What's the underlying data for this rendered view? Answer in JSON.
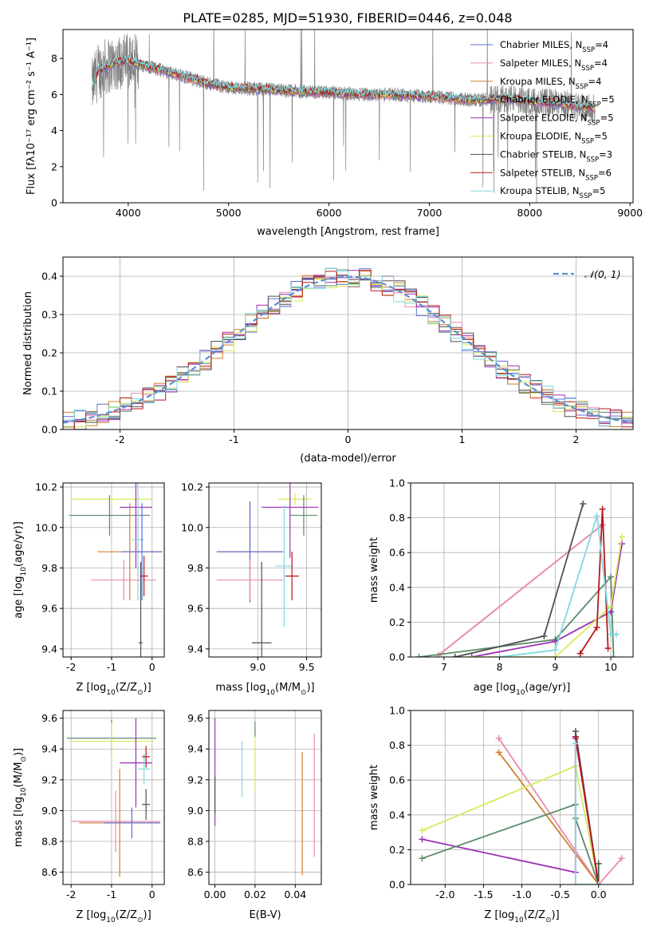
{
  "figure_title": "PLATE=0285, MJD=51930, FIBERID=0446, z=0.048",
  "colors": {
    "chabrier_miles": "#5b6fd6",
    "salpeter_miles": "#e98bb0",
    "kroupa_miles": "#d08131",
    "chabrier_elodie": "#5b8a68",
    "salpeter_elodie": "#9c2fb4",
    "kroupa_elodie": "#d6ea5a",
    "chabrier_stelib": "#505050",
    "salpeter_stelib": "#b81818",
    "kroupa_stelib": "#80d8df",
    "observed_spectrum": "#808080",
    "normal_curve": "#5b8fd6",
    "grid": "#b0b0b0"
  },
  "chart_data": [
    {
      "id": "spectrum",
      "type": "line",
      "xlabel": "wavelength [Angstrom, rest frame]",
      "ylabel": "Flux [fλ10⁻¹⁷ erg cm⁻² s⁻¹ A⁻¹]",
      "xlim": [
        3350,
        9030
      ],
      "ylim": [
        0,
        9.6
      ],
      "xticks": [
        4000,
        5000,
        6000,
        7000,
        8000,
        9000
      ],
      "yticks": [
        0,
        2,
        4,
        6,
        8
      ],
      "grid": false,
      "legend_position": "upper right",
      "data_range": [
        3640,
        8650
      ],
      "approx_continuum": {
        "x": [
          3640,
          3700,
          3800,
          3900,
          4000,
          4100,
          4300,
          4500,
          4800,
          5000,
          5300,
          5600,
          6000,
          6300,
          6600,
          7000,
          7400,
          7600,
          7800,
          8000,
          8300,
          8650
        ],
        "y": [
          6.4,
          7.3,
          7.6,
          7.8,
          7.9,
          7.7,
          7.4,
          7.1,
          6.6,
          6.4,
          6.3,
          6.2,
          6.1,
          6.0,
          6.0,
          5.9,
          5.7,
          5.7,
          5.8,
          5.6,
          5.5,
          5.2
        ]
      },
      "series": [
        {
          "name": "Chabrier MILES, N_SSP=4",
          "color_key": "chabrier_miles"
        },
        {
          "name": "Salpeter MILES, N_SSP=4",
          "color_key": "salpeter_miles"
        },
        {
          "name": "Kroupa MILES, N_SSP=4",
          "color_key": "kroupa_miles"
        },
        {
          "name": "Chabrier ELODIE, N_SSP=5",
          "color_key": "chabrier_elodie"
        },
        {
          "name": "Salpeter ELODIE, N_SSP=5",
          "color_key": "salpeter_elodie"
        },
        {
          "name": "Kroupa ELODIE, N_SSP=5",
          "color_key": "kroupa_elodie"
        },
        {
          "name": "Chabrier STELIB, N_SSP=3",
          "color_key": "chabrier_stelib"
        },
        {
          "name": "Salpeter STELIB, N_SSP=6",
          "color_key": "salpeter_stelib"
        },
        {
          "name": "Kroupa STELIB, N_SSP=5",
          "color_key": "kroupa_stelib"
        }
      ]
    },
    {
      "id": "residuals",
      "type": "step",
      "xlabel": "(data-model)/error",
      "ylabel": "Normed distribution",
      "xlim": [
        -2.5,
        2.5
      ],
      "ylim": [
        0,
        0.45
      ],
      "xticks": [
        -2,
        -1,
        0,
        1,
        2
      ],
      "yticks": [
        0.0,
        0.1,
        0.2,
        0.3,
        0.4
      ],
      "grid": true,
      "legend_position": "upper right",
      "legend_label": "𝒩(0, 1)",
      "bin_edges": {
        "start": -2.5,
        "width": 0.1,
        "count": 50
      }
    },
    {
      "id": "age_vs_Z",
      "type": "errorbar",
      "xlabel": "Z [log10(Z/Z⊙)]",
      "ylabel": "age  [log10(age/yr)]",
      "xlim": [
        -2.2,
        0.3
      ],
      "ylim": [
        9.36,
        10.22
      ],
      "xticks": [
        -2,
        -1,
        0
      ],
      "yticks": [
        9.4,
        9.6,
        9.8,
        10.0,
        10.2
      ],
      "grid": true,
      "points": [
        {
          "color_key": "kroupa_elodie",
          "x": -1.0,
          "xerr": 1.0,
          "y": 10.14,
          "yerr": 0.03
        },
        {
          "color_key": "chabrier_elodie",
          "x": -1.05,
          "xerr": 1.0,
          "y": 10.06,
          "yerr": 0.1
        },
        {
          "color_key": "salpeter_elodie",
          "x": -0.4,
          "xerr": 0.4,
          "y": 10.1,
          "yerr": 0.3
        },
        {
          "color_key": "kroupa_stelib",
          "x": -0.35,
          "xerr": 0.15,
          "y": 9.94,
          "yerr": 0.3
        },
        {
          "color_key": "kroupa_miles",
          "x": -0.55,
          "xerr": 0.8,
          "y": 9.88,
          "yerr": 0.24
        },
        {
          "color_key": "chabrier_miles",
          "x": -0.25,
          "xerr": 0.5,
          "y": 9.88,
          "yerr": 0.24
        },
        {
          "color_key": "salpeter_miles",
          "x": -0.7,
          "xerr": 0.8,
          "y": 9.74,
          "yerr": 0.1
        },
        {
          "color_key": "chabrier_stelib",
          "x": -0.28,
          "xerr": 0.05,
          "y": 9.43,
          "yerr": 0.4
        },
        {
          "color_key": "salpeter_stelib",
          "x": -0.2,
          "xerr": 0.1,
          "y": 9.76,
          "yerr": 0.1
        }
      ]
    },
    {
      "id": "age_vs_mass",
      "type": "errorbar",
      "xlabel": "mass [log10(M/M⊙)]",
      "ylabel": "",
      "xlim": [
        8.5,
        9.65
      ],
      "ylim": [
        9.36,
        10.22
      ],
      "xticks": [
        9.0,
        9.5
      ],
      "yticks": [
        9.4,
        9.6,
        9.8,
        10.0,
        10.2
      ],
      "grid": true,
      "points": [
        {
          "color_key": "kroupa_elodie",
          "x": 9.38,
          "xerr": 0.17,
          "y": 10.14,
          "yerr": 0.03
        },
        {
          "color_key": "chabrier_elodie",
          "x": 9.47,
          "xerr": 0.14,
          "y": 10.06,
          "yerr": 0.1
        },
        {
          "color_key": "salpeter_elodie",
          "x": 9.33,
          "xerr": 0.29,
          "y": 10.1,
          "yerr": 0.25
        },
        {
          "color_key": "kroupa_stelib",
          "x": 9.27,
          "xerr": 0.09,
          "y": 9.81,
          "yerr": 0.3
        },
        {
          "color_key": "kroupa_miles",
          "x": 8.92,
          "xerr": 0.34,
          "y": 9.88,
          "yerr": 0.25
        },
        {
          "color_key": "chabrier_miles",
          "x": 8.92,
          "xerr": 0.34,
          "y": 9.88,
          "yerr": 0.25
        },
        {
          "color_key": "salpeter_miles",
          "x": 8.92,
          "xerr": 0.34,
          "y": 9.74,
          "yerr": 0.1
        },
        {
          "color_key": "chabrier_stelib",
          "x": 9.04,
          "xerr": 0.1,
          "y": 9.43,
          "yerr": 0.4
        },
        {
          "color_key": "salpeter_stelib",
          "x": 9.35,
          "xerr": 0.07,
          "y": 9.76,
          "yerr": 0.12
        }
      ]
    },
    {
      "id": "massweight_vs_age",
      "type": "line",
      "xlabel": "age  [log10(age/yr)]",
      "ylabel": "mass weight",
      "xlim": [
        6.4,
        10.4
      ],
      "ylim": [
        0,
        1.0
      ],
      "xticks": [
        7,
        8,
        9,
        10
      ],
      "yticks": [
        0.0,
        0.2,
        0.4,
        0.6,
        0.8,
        1.0
      ],
      "grid": true,
      "series": [
        {
          "color_key": "kroupa_miles",
          "x": [
            6.9,
            9.85
          ],
          "y": [
            0.01,
            0.76
          ]
        },
        {
          "color_key": "salpeter_miles",
          "x": [
            6.9,
            9.85
          ],
          "y": [
            0.01,
            0.76
          ]
        },
        {
          "color_key": "chabrier_elodie",
          "x": [
            6.55,
            9.0,
            10.0,
            10.05
          ],
          "y": [
            0.0,
            0.1,
            0.46,
            0.0
          ]
        },
        {
          "color_key": "salpeter_elodie",
          "x": [
            7.5,
            9.0,
            10.0,
            10.2
          ],
          "y": [
            0.0,
            0.09,
            0.26,
            0.65
          ]
        },
        {
          "color_key": "kroupa_elodie",
          "x": [
            7.2,
            9.0,
            10.0,
            10.2
          ],
          "y": [
            0.0,
            0.0,
            0.29,
            0.69
          ]
        },
        {
          "color_key": "chabrier_stelib",
          "x": [
            7.2,
            8.8,
            9.5
          ],
          "y": [
            0.0,
            0.12,
            0.88
          ]
        },
        {
          "color_key": "salpeter_stelib",
          "x": [
            9.45,
            9.75,
            9.85,
            9.95
          ],
          "y": [
            0.02,
            0.17,
            0.85,
            0.05
          ]
        },
        {
          "color_key": "kroupa_stelib",
          "x": [
            8.0,
            9.0,
            9.75,
            10.0,
            10.1
          ],
          "y": [
            0.0,
            0.04,
            0.81,
            0.13,
            0.13
          ]
        }
      ]
    },
    {
      "id": "mass_vs_Z",
      "type": "errorbar",
      "xlabel": "Z [log10(Z/Z⊙)]",
      "ylabel": "mass [log10(M/M⊙)]",
      "xlim": [
        -2.2,
        0.3
      ],
      "ylim": [
        8.52,
        9.65
      ],
      "xticks": [
        -2,
        -1,
        0
      ],
      "yticks": [
        8.6,
        8.8,
        9.0,
        9.2,
        9.4,
        9.6
      ],
      "grid": true,
      "points": [
        {
          "color_key": "chabrier_elodie",
          "x": -1.0,
          "xerr": 1.1,
          "y": 9.47,
          "yerr": 0.12
        },
        {
          "color_key": "kroupa_elodie",
          "x": -1.0,
          "xerr": 1.05,
          "y": 9.45,
          "yerr": 0.12
        },
        {
          "color_key": "salpeter_elodie",
          "x": -0.4,
          "xerr": 0.4,
          "y": 9.31,
          "yerr": 0.29
        },
        {
          "color_key": "kroupa_stelib",
          "x": -0.2,
          "xerr": 0.15,
          "y": 9.27,
          "yerr": 0.1
        },
        {
          "color_key": "salpeter_stelib",
          "x": -0.15,
          "xerr": 0.1,
          "y": 9.35,
          "yerr": 0.07
        },
        {
          "color_key": "chabrier_stelib",
          "x": -0.15,
          "xerr": 0.1,
          "y": 9.04,
          "yerr": 0.1
        },
        {
          "color_key": "salpeter_miles",
          "x": -0.9,
          "xerr": 1.1,
          "y": 8.93,
          "yerr": 0.2
        },
        {
          "color_key": "kroupa_miles",
          "x": -0.8,
          "xerr": 1.0,
          "y": 8.92,
          "yerr": 0.35
        },
        {
          "color_key": "chabrier_miles",
          "x": -0.5,
          "xerr": 0.7,
          "y": 8.92,
          "yerr": 0.1
        }
      ]
    },
    {
      "id": "mass_vs_EBV",
      "type": "errorbar",
      "xlabel": "E(B-V)",
      "ylabel": "",
      "xlim": [
        -0.003,
        0.053
      ],
      "ylim": [
        8.52,
        9.65
      ],
      "xticks": [
        0.0,
        0.02,
        0.04
      ],
      "yticks": [
        8.6,
        8.8,
        9.0,
        9.2,
        9.4,
        9.6
      ],
      "grid": true,
      "points": [
        {
          "color_key": "salpeter_elodie",
          "x": 0.0,
          "y": 9.25,
          "yerr": 0.35
        },
        {
          "color_key": "chabrier_stelib",
          "x": 0.0,
          "y": 9.1,
          "yerr": 0.12
        },
        {
          "color_key": "kroupa_stelib",
          "x": 0.0135,
          "y": 9.27,
          "yerr": 0.18
        },
        {
          "color_key": "kroupa_elodie",
          "x": 0.02,
          "y": 9.33,
          "yerr": 0.2
        },
        {
          "color_key": "chabrier_elodie",
          "x": 0.02,
          "y": 9.53,
          "yerr": 0.05
        },
        {
          "color_key": "kroupa_miles",
          "x": 0.0435,
          "y": 8.98,
          "yerr": 0.4
        },
        {
          "color_key": "salpeter_miles",
          "x": 0.0495,
          "y": 9.1,
          "yerr": 0.4
        }
      ]
    },
    {
      "id": "massweight_vs_Z",
      "type": "line",
      "xlabel": "Z [log10(Z/Z⊙)]",
      "ylabel": "mass weight",
      "xlim": [
        -2.45,
        0.45
      ],
      "ylim": [
        0,
        1.0
      ],
      "xticks": [
        -2.0,
        -1.5,
        -1.0,
        -0.5,
        0.0
      ],
      "yticks": [
        0.0,
        0.2,
        0.4,
        0.6,
        0.8,
        1.0
      ],
      "grid": true,
      "series": [
        {
          "color_key": "salpeter_miles",
          "x": [
            -1.3,
            0.0,
            0.3
          ],
          "y": [
            0.84,
            0.0,
            0.15
          ]
        },
        {
          "color_key": "kroupa_miles",
          "x": [
            -1.3,
            0.0
          ],
          "y": [
            0.76,
            0.0
          ]
        },
        {
          "color_key": "kroupa_elodie",
          "x": [
            -2.3,
            -0.3,
            0.0
          ],
          "y": [
            0.31,
            0.68,
            0.0
          ]
        },
        {
          "color_key": "salpeter_elodie",
          "x": [
            -2.3,
            -0.3,
            -0.3,
            0.0
          ],
          "y": [
            0.26,
            0.07,
            0.84,
            0.0
          ]
        },
        {
          "color_key": "chabrier_elodie",
          "x": [
            -2.3,
            -0.3,
            -0.3,
            0.0
          ],
          "y": [
            0.15,
            0.46,
            0.38,
            0.0
          ]
        },
        {
          "color_key": "chabrier_stelib",
          "x": [
            -0.3,
            0.0,
            0.0
          ],
          "y": [
            0.88,
            0.0,
            0.12
          ]
        },
        {
          "color_key": "salpeter_stelib",
          "x": [
            -0.3,
            0.0
          ],
          "y": [
            0.85,
            0.0
          ]
        },
        {
          "color_key": "kroupa_stelib",
          "x": [
            -0.3,
            -0.3,
            0.0
          ],
          "y": [
            0.81,
            0.0,
            0.0
          ]
        }
      ]
    }
  ]
}
